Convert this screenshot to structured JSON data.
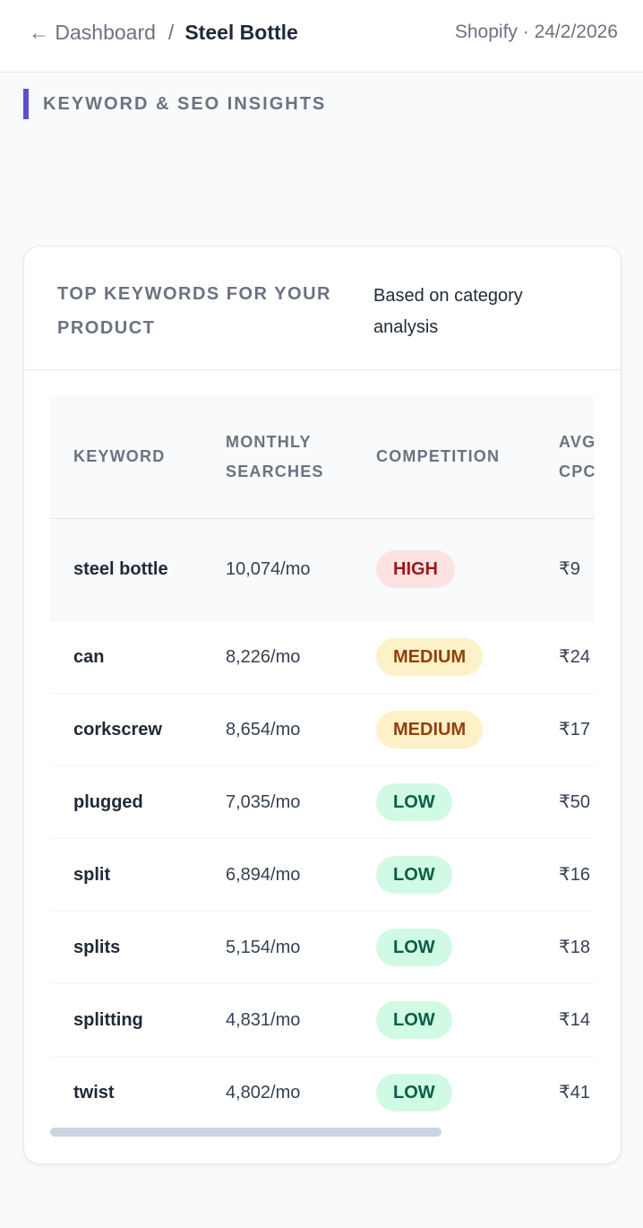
{
  "header": {
    "back_link": "← Dashboard",
    "separator": "/",
    "current": "Steel Bottle",
    "meta": "Shopify · 24/2/2026"
  },
  "section": {
    "title": "KEYWORD & SEO INSIGHTS"
  },
  "card": {
    "title": "TOP KEYWORDS FOR YOUR PRODUCT",
    "subtitle": "Based on category analysis"
  },
  "table": {
    "columns": [
      "KEYWORD",
      "MONTHLY SEARCHES",
      "COMPETITION",
      "AVG CPC (₹)"
    ],
    "rows": [
      [
        "steel bottle",
        "10,074/mo",
        "HIGH",
        "₹9"
      ],
      [
        "can",
        "8,226/mo",
        "MEDIUM",
        "₹24"
      ],
      [
        "corkscrew",
        "8,654/mo",
        "MEDIUM",
        "₹17"
      ],
      [
        "plugged",
        "7,035/mo",
        "LOW",
        "₹50"
      ],
      [
        "split",
        "6,894/mo",
        "LOW",
        "₹16"
      ],
      [
        "splits",
        "5,154/mo",
        "LOW",
        "₹18"
      ],
      [
        "splitting",
        "4,831/mo",
        "LOW",
        "₹14"
      ],
      [
        "twist",
        "4,802/mo",
        "LOW",
        "₹41"
      ]
    ]
  }
}
